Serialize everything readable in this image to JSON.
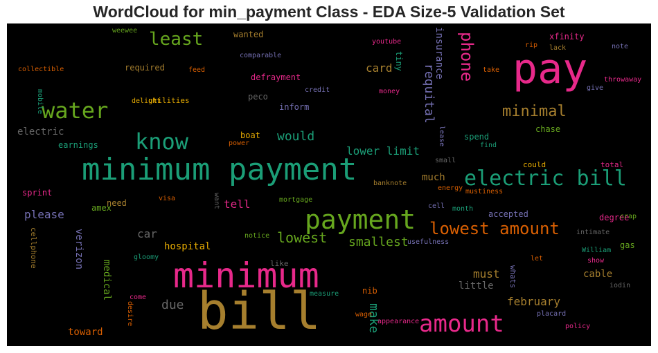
{
  "chart_data": {
    "type": "wordcloud",
    "title": "WordCloud for min_payment Class - EDA Size-5 Validation Set",
    "background": "#000000",
    "words": [
      {
        "text": "bill",
        "color": "#a67f2e"
      },
      {
        "text": "minimum payment",
        "color": "#1b9e77"
      },
      {
        "text": "pay",
        "color": "#e7298a"
      },
      {
        "text": "minimum",
        "color": "#e7298a"
      },
      {
        "text": "payment",
        "color": "#66a61e"
      },
      {
        "text": "electric bill",
        "color": "#1b9e77"
      },
      {
        "text": "amount",
        "color": "#e7298a"
      },
      {
        "text": "water",
        "color": "#66a61e"
      },
      {
        "text": "know",
        "color": "#1b9e77"
      },
      {
        "text": "lowest amount",
        "color": "#d95f02"
      },
      {
        "text": "least",
        "color": "#66a61e"
      },
      {
        "text": "minimal",
        "color": "#a67f2e"
      },
      {
        "text": "phone",
        "color": "#e7298a"
      },
      {
        "text": "requital",
        "color": "#7570b3"
      },
      {
        "text": "would",
        "color": "#1b9e77"
      },
      {
        "text": "lowest",
        "color": "#66a61e"
      },
      {
        "text": "smallest",
        "color": "#66a61e"
      },
      {
        "text": "lower limit",
        "color": "#1b9e77"
      },
      {
        "text": "due",
        "color": "#666666"
      },
      {
        "text": "make",
        "color": "#1b9e77"
      },
      {
        "text": "february",
        "color": "#a67f2e"
      },
      {
        "text": "card",
        "color": "#a67f2e"
      },
      {
        "text": "insurance",
        "color": "#7570b3"
      },
      {
        "text": "tell",
        "color": "#e7298a"
      },
      {
        "text": "please",
        "color": "#7570b3"
      },
      {
        "text": "car",
        "color": "#666666"
      },
      {
        "text": "hospital",
        "color": "#e6ab02"
      },
      {
        "text": "must",
        "color": "#a67f2e"
      },
      {
        "text": "much",
        "color": "#a67f2e"
      },
      {
        "text": "medical",
        "color": "#66a61e"
      },
      {
        "text": "verizon",
        "color": "#7570b3"
      },
      {
        "text": "cable",
        "color": "#a67f2e"
      },
      {
        "text": "little",
        "color": "#666666"
      },
      {
        "text": "toward",
        "color": "#d95f02"
      },
      {
        "text": "electric",
        "color": "#666666"
      },
      {
        "text": "tiny",
        "color": "#1b9e77"
      },
      {
        "text": "inform",
        "color": "#7570b3"
      },
      {
        "text": "defrayment",
        "color": "#e7298a"
      },
      {
        "text": "peco",
        "color": "#666666"
      },
      {
        "text": "xfinity",
        "color": "#e7298a"
      },
      {
        "text": "chase",
        "color": "#66a61e"
      },
      {
        "text": "spend",
        "color": "#1b9e77"
      },
      {
        "text": "need",
        "color": "#a67f2e"
      },
      {
        "text": "accepted",
        "color": "#7570b3"
      },
      {
        "text": "nib",
        "color": "#d95f02"
      },
      {
        "text": "boat",
        "color": "#e6ab02"
      },
      {
        "text": "earnings",
        "color": "#1b9e77"
      },
      {
        "text": "sprint",
        "color": "#e7298a"
      },
      {
        "text": "amex",
        "color": "#66a61e"
      },
      {
        "text": "gas",
        "color": "#66a61e"
      },
      {
        "text": "degree",
        "color": "#e7298a"
      },
      {
        "text": "required",
        "color": "#a67f2e"
      },
      {
        "text": "wanted",
        "color": "#a67f2e"
      },
      {
        "text": "cellphone",
        "color": "#a67f2e"
      },
      {
        "text": "like",
        "color": "#666666"
      },
      {
        "text": "whats",
        "color": "#7570b3"
      },
      {
        "text": "total",
        "color": "#e7298a"
      },
      {
        "text": "could",
        "color": "#e6ab02"
      },
      {
        "text": "utilities",
        "color": "#e6ab02"
      },
      {
        "text": "collectible",
        "color": "#d95f02"
      },
      {
        "text": "delight",
        "color": "#e6ab02"
      },
      {
        "text": "credit",
        "color": "#7570b3"
      },
      {
        "text": "money",
        "color": "#e7298a"
      },
      {
        "text": "youtube",
        "color": "#e7298a"
      },
      {
        "text": "comparable",
        "color": "#7570b3"
      },
      {
        "text": "weewee",
        "color": "#66a61e"
      },
      {
        "text": "feed",
        "color": "#d95f02"
      },
      {
        "text": "mobile",
        "color": "#1b9e77"
      },
      {
        "text": "power",
        "color": "#d95f02"
      },
      {
        "text": "rip",
        "color": "#d95f02"
      },
      {
        "text": "lack",
        "color": "#a67f2e"
      },
      {
        "text": "note",
        "color": "#7570b3"
      },
      {
        "text": "take",
        "color": "#d95f02"
      },
      {
        "text": "throwaway",
        "color": "#e7298a"
      },
      {
        "text": "give",
        "color": "#7570b3"
      },
      {
        "text": "lease",
        "color": "#7570b3"
      },
      {
        "text": "small",
        "color": "#666666"
      },
      {
        "text": "find",
        "color": "#1b9e77"
      },
      {
        "text": "banknote",
        "color": "#a67f2e"
      },
      {
        "text": "energy",
        "color": "#d95f02"
      },
      {
        "text": "mustiness",
        "color": "#d95f02"
      },
      {
        "text": "cell",
        "color": "#7570b3"
      },
      {
        "text": "month",
        "color": "#1b9e77"
      },
      {
        "text": "intimate",
        "color": "#666666"
      },
      {
        "text": "crap",
        "color": "#66a61e"
      },
      {
        "text": "mortgage",
        "color": "#66a61e"
      },
      {
        "text": "want",
        "color": "#666666"
      },
      {
        "text": "visa",
        "color": "#d95f02"
      },
      {
        "text": "notice",
        "color": "#66a61e"
      },
      {
        "text": "gloomy",
        "color": "#1b9e77"
      },
      {
        "text": "usefulness",
        "color": "#7570b3"
      },
      {
        "text": "William",
        "color": "#1b9e77"
      },
      {
        "text": "let",
        "color": "#d95f02"
      },
      {
        "text": "show",
        "color": "#e7298a"
      },
      {
        "text": "iodin",
        "color": "#666666"
      },
      {
        "text": "come",
        "color": "#e7298a"
      },
      {
        "text": "desire",
        "color": "#d95f02"
      },
      {
        "text": "measure",
        "color": "#1b9e77"
      },
      {
        "text": "appearance",
        "color": "#e7298a"
      },
      {
        "text": "wage",
        "color": "#d95f02"
      },
      {
        "text": "placard",
        "color": "#7570b3"
      },
      {
        "text": "policy",
        "color": "#e7298a"
      }
    ]
  }
}
